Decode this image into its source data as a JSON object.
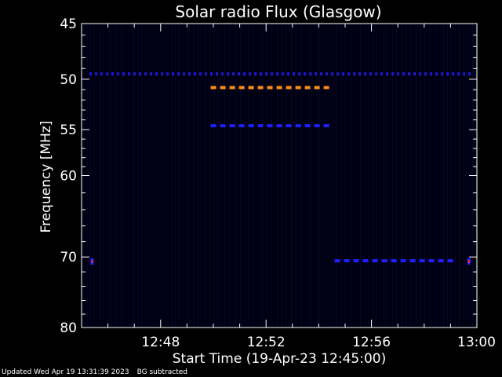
{
  "chart_data": {
    "type": "heatmap",
    "title": "Solar radio Flux (Glasgow)",
    "xlabel": "Start Time (19-Apr-23 12:45:00)",
    "ylabel": "Frequency [MHz]",
    "x_tick_labels": [
      "12:48",
      "12:52",
      "12:56",
      "13:00"
    ],
    "x_ticks_minutes": [
      3,
      7,
      11,
      15
    ],
    "xlim_minutes": [
      0,
      15
    ],
    "y_tick_labels": [
      "45",
      "50",
      "55",
      "60",
      "70",
      "80"
    ],
    "y_ticks": [
      45,
      50,
      55,
      60,
      70,
      80
    ],
    "ylim": [
      45,
      80
    ],
    "y_scale": "log",
    "background_color": "#000000",
    "plot_color": "#000014",
    "features": [
      {
        "kind": "dashed-band",
        "freq": 49.5,
        "t_start": 0.3,
        "t_end": 14.8,
        "color": "#1a1ad8"
      },
      {
        "kind": "dashed-band",
        "freq": 50.8,
        "t_start": 4.9,
        "t_end": 9.5,
        "color": "#ff8c1a"
      },
      {
        "kind": "dashed-band",
        "freq": 54.6,
        "t_start": 4.9,
        "t_end": 9.5,
        "color": "#1e1eff"
      },
      {
        "kind": "dashed-band",
        "freq": 70.5,
        "t_start": 9.6,
        "t_end": 14.0,
        "color": "#1e1eff"
      },
      {
        "kind": "spot",
        "freq": 70.6,
        "t": 0.4,
        "color": "#ff2050"
      },
      {
        "kind": "spot",
        "freq": 70.6,
        "t": 14.7,
        "color": "#ff2050"
      }
    ]
  },
  "footer": {
    "updated": "Updated Wed Apr 19 13:31:39 2023",
    "bg_note": "BG subtracted"
  }
}
